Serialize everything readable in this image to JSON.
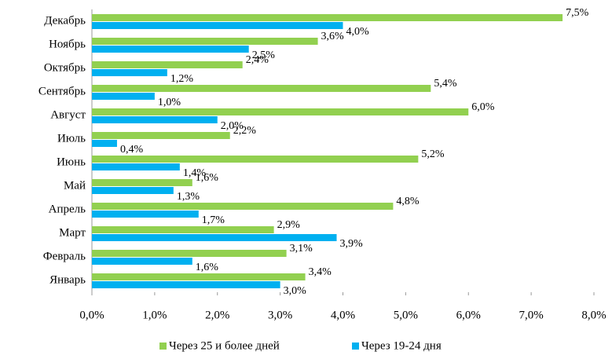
{
  "chart_data": {
    "type": "hbar",
    "categories": [
      "Декабрь",
      "Ноябрь",
      "Октябрь",
      "Сентябрь",
      "Август",
      "Июль",
      "Июнь",
      "Май",
      "Апрель",
      "Март",
      "Февраль",
      "Январь"
    ],
    "series": [
      {
        "name": "Через 25 и более дней",
        "color": "#92d050",
        "values": [
          7.5,
          3.6,
          2.4,
          5.4,
          6.0,
          2.2,
          5.2,
          1.6,
          4.8,
          2.9,
          3.1,
          3.4
        ],
        "value_labels": [
          "7,5%",
          "3,6%",
          "2,4%",
          "5,4%",
          "6,0%",
          "2,2%",
          "5,2%",
          "1,6%",
          "4,8%",
          "2,9%",
          "3,1%",
          "3,4%"
        ]
      },
      {
        "name": "Через 19-24 дня",
        "color": "#00b0f0",
        "values": [
          4.0,
          2.5,
          1.2,
          1.0,
          2.0,
          0.4,
          1.4,
          1.3,
          1.7,
          3.9,
          1.6,
          3.0
        ],
        "value_labels": [
          "4,0%",
          "2,5%",
          "1,2%",
          "1,0%",
          "2,0%",
          "0,4%",
          "1,4%",
          "1,3%",
          "1,7%",
          "3,9%",
          "1,6%",
          "3,0%"
        ]
      }
    ],
    "xlim": [
      0,
      8
    ],
    "xticks": [
      {
        "value": 0,
        "label": "0,0%"
      },
      {
        "value": 1,
        "label": "1,0%"
      },
      {
        "value": 2,
        "label": "2,0%"
      },
      {
        "value": 3,
        "label": "3,0%"
      },
      {
        "value": 4,
        "label": "4,0%"
      },
      {
        "value": 5,
        "label": "5,0%"
      },
      {
        "value": 6,
        "label": "6,0%"
      },
      {
        "value": 7,
        "label": "7,0%"
      },
      {
        "value": 8,
        "label": "8,0%"
      }
    ],
    "grid": false,
    "legend": "bottom"
  }
}
